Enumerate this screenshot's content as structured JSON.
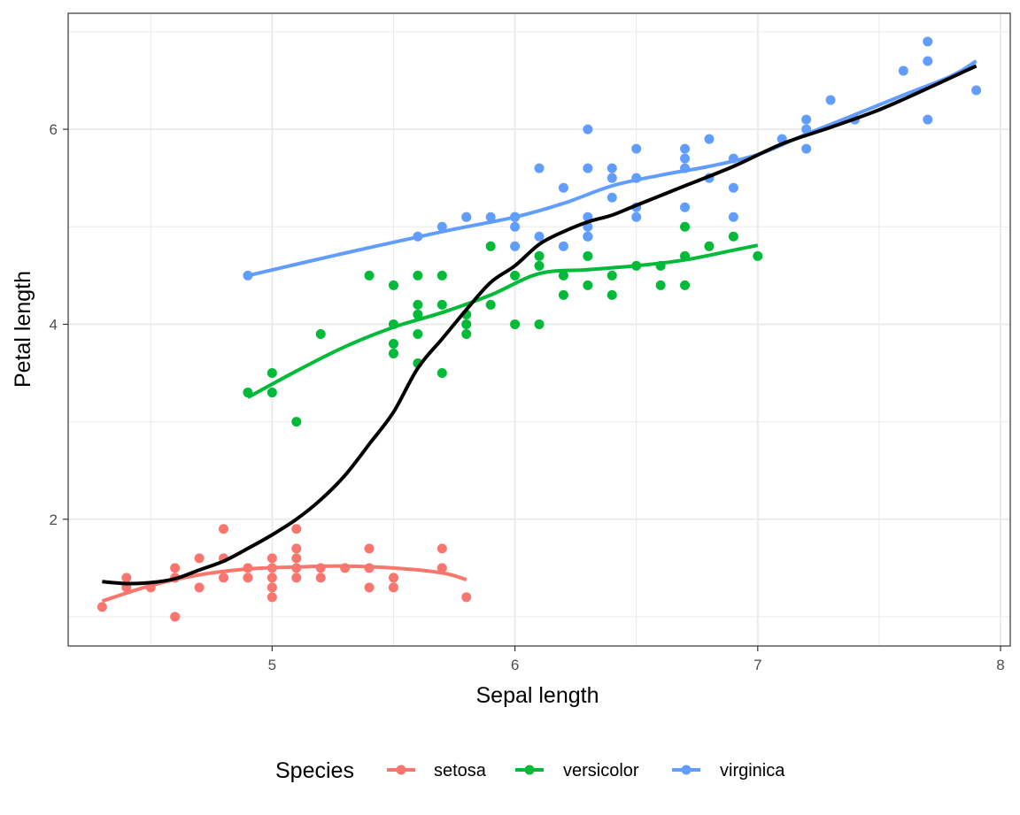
{
  "chart_data": {
    "type": "scatter",
    "xlabel": "Sepal length",
    "ylabel": "Petal length",
    "xlim": [
      4.16,
      8.04
    ],
    "ylim": [
      0.7,
      7.19
    ],
    "x_ticks": [
      5,
      6,
      7,
      8
    ],
    "y_ticks": [
      2,
      4,
      6
    ],
    "x_minor_ticks": [
      4.5,
      5.5,
      6.5,
      7.5
    ],
    "y_minor_ticks": [
      1,
      3,
      5,
      7
    ],
    "x_tick_labels": [
      "5",
      "6",
      "7",
      "8"
    ],
    "y_tick_labels": [
      "2",
      "4",
      "6"
    ],
    "grid": true,
    "legend": {
      "title": "Species",
      "position": "bottom",
      "entries": [
        "setosa",
        "versicolor",
        "virginica"
      ]
    },
    "series": [
      {
        "name": "setosa",
        "color": "#F8766D",
        "points": [
          [
            4.3,
            1.1
          ],
          [
            4.4,
            1.4
          ],
          [
            4.4,
            1.3
          ],
          [
            4.5,
            1.3
          ],
          [
            4.6,
            1.0
          ],
          [
            4.6,
            1.4
          ],
          [
            4.6,
            1.5
          ],
          [
            4.7,
            1.3
          ],
          [
            4.7,
            1.6
          ],
          [
            4.8,
            1.9
          ],
          [
            4.8,
            1.6
          ],
          [
            4.8,
            1.4
          ],
          [
            4.9,
            1.5
          ],
          [
            4.9,
            1.4
          ],
          [
            5.0,
            1.6
          ],
          [
            5.0,
            1.5
          ],
          [
            5.0,
            1.4
          ],
          [
            5.0,
            1.3
          ],
          [
            5.0,
            1.2
          ],
          [
            5.1,
            1.9
          ],
          [
            5.1,
            1.7
          ],
          [
            5.1,
            1.6
          ],
          [
            5.1,
            1.5
          ],
          [
            5.1,
            1.4
          ],
          [
            5.2,
            1.5
          ],
          [
            5.2,
            1.4
          ],
          [
            5.3,
            1.5
          ],
          [
            5.4,
            1.7
          ],
          [
            5.4,
            1.5
          ],
          [
            5.4,
            1.3
          ],
          [
            5.5,
            1.4
          ],
          [
            5.5,
            1.3
          ],
          [
            5.7,
            1.7
          ],
          [
            5.7,
            1.5
          ],
          [
            5.8,
            1.2
          ]
        ],
        "smooth": [
          [
            4.3,
            1.16
          ],
          [
            4.5,
            1.32
          ],
          [
            4.7,
            1.43
          ],
          [
            4.9,
            1.49
          ],
          [
            5.1,
            1.51
          ],
          [
            5.3,
            1.52
          ],
          [
            5.5,
            1.5
          ],
          [
            5.7,
            1.45
          ],
          [
            5.8,
            1.38
          ]
        ]
      },
      {
        "name": "versicolor",
        "color": "#00BA38",
        "points": [
          [
            4.9,
            3.3
          ],
          [
            5.0,
            3.5
          ],
          [
            5.0,
            3.3
          ],
          [
            5.1,
            3.0
          ],
          [
            5.2,
            3.9
          ],
          [
            5.4,
            4.5
          ],
          [
            5.5,
            4.4
          ],
          [
            5.5,
            4.0
          ],
          [
            5.5,
            3.8
          ],
          [
            5.5,
            3.7
          ],
          [
            5.6,
            4.5
          ],
          [
            5.6,
            4.2
          ],
          [
            5.6,
            4.1
          ],
          [
            5.6,
            3.9
          ],
          [
            5.6,
            3.6
          ],
          [
            5.7,
            4.5
          ],
          [
            5.7,
            4.2
          ],
          [
            5.7,
            3.5
          ],
          [
            5.8,
            4.1
          ],
          [
            5.8,
            4.0
          ],
          [
            5.8,
            3.9
          ],
          [
            5.9,
            4.8
          ],
          [
            5.9,
            4.2
          ],
          [
            6.0,
            5.1
          ],
          [
            6.0,
            4.5
          ],
          [
            6.0,
            4.0
          ],
          [
            6.1,
            4.7
          ],
          [
            6.1,
            4.6
          ],
          [
            6.1,
            4.0
          ],
          [
            6.2,
            4.5
          ],
          [
            6.2,
            4.3
          ],
          [
            6.3,
            4.9
          ],
          [
            6.3,
            4.7
          ],
          [
            6.3,
            4.4
          ],
          [
            6.4,
            4.5
          ],
          [
            6.4,
            4.3
          ],
          [
            6.5,
            4.6
          ],
          [
            6.6,
            4.6
          ],
          [
            6.6,
            4.4
          ],
          [
            6.7,
            5.0
          ],
          [
            6.7,
            4.7
          ],
          [
            6.7,
            4.4
          ],
          [
            6.8,
            4.8
          ],
          [
            6.9,
            4.9
          ],
          [
            7.0,
            4.7
          ]
        ],
        "smooth": [
          [
            4.9,
            3.25
          ],
          [
            5.1,
            3.52
          ],
          [
            5.3,
            3.77
          ],
          [
            5.5,
            3.97
          ],
          [
            5.7,
            4.12
          ],
          [
            5.9,
            4.3
          ],
          [
            6.1,
            4.52
          ],
          [
            6.3,
            4.56
          ],
          [
            6.5,
            4.6
          ],
          [
            6.7,
            4.66
          ],
          [
            6.9,
            4.76
          ],
          [
            7.0,
            4.81
          ]
        ]
      },
      {
        "name": "virginica",
        "color": "#619CFF",
        "points": [
          [
            4.9,
            4.5
          ],
          [
            5.6,
            4.9
          ],
          [
            5.7,
            5.0
          ],
          [
            5.8,
            5.1
          ],
          [
            5.8,
            5.1
          ],
          [
            5.9,
            5.1
          ],
          [
            6.0,
            5.1
          ],
          [
            6.0,
            4.8
          ],
          [
            6.0,
            5.0
          ],
          [
            6.1,
            5.6
          ],
          [
            6.1,
            4.9
          ],
          [
            6.2,
            5.4
          ],
          [
            6.2,
            4.8
          ],
          [
            6.3,
            6.0
          ],
          [
            6.3,
            5.6
          ],
          [
            6.3,
            5.1
          ],
          [
            6.3,
            5.0
          ],
          [
            6.3,
            4.9
          ],
          [
            6.4,
            5.6
          ],
          [
            6.4,
            5.5
          ],
          [
            6.4,
            5.3
          ],
          [
            6.5,
            5.8
          ],
          [
            6.5,
            5.5
          ],
          [
            6.5,
            5.2
          ],
          [
            6.5,
            5.1
          ],
          [
            6.7,
            5.8
          ],
          [
            6.7,
            5.7
          ],
          [
            6.7,
            5.6
          ],
          [
            6.7,
            5.2
          ],
          [
            6.8,
            5.9
          ],
          [
            6.8,
            5.5
          ],
          [
            6.9,
            5.7
          ],
          [
            6.9,
            5.4
          ],
          [
            6.9,
            5.1
          ],
          [
            7.1,
            5.9
          ],
          [
            7.2,
            6.1
          ],
          [
            7.2,
            6.0
          ],
          [
            7.2,
            5.8
          ],
          [
            7.3,
            6.3
          ],
          [
            7.4,
            6.1
          ],
          [
            7.6,
            6.6
          ],
          [
            7.7,
            6.9
          ],
          [
            7.7,
            6.7
          ],
          [
            7.7,
            6.1
          ],
          [
            7.9,
            6.4
          ]
        ],
        "smooth": [
          [
            4.9,
            4.5
          ],
          [
            5.3,
            4.73
          ],
          [
            5.7,
            4.95
          ],
          [
            6.0,
            5.1
          ],
          [
            6.2,
            5.24
          ],
          [
            6.4,
            5.42
          ],
          [
            6.6,
            5.53
          ],
          [
            6.8,
            5.62
          ],
          [
            7.0,
            5.74
          ],
          [
            7.2,
            5.95
          ],
          [
            7.4,
            6.15
          ],
          [
            7.6,
            6.35
          ],
          [
            7.8,
            6.55
          ],
          [
            7.9,
            6.7
          ]
        ]
      }
    ],
    "overall_smooth": {
      "name": "",
      "color": "#000000",
      "points": [
        [
          4.3,
          1.36
        ],
        [
          4.4,
          1.34
        ],
        [
          4.5,
          1.35
        ],
        [
          4.6,
          1.39
        ],
        [
          4.7,
          1.48
        ],
        [
          4.8,
          1.57
        ],
        [
          4.9,
          1.7
        ],
        [
          5.0,
          1.84
        ],
        [
          5.1,
          2.0
        ],
        [
          5.2,
          2.2
        ],
        [
          5.3,
          2.45
        ],
        [
          5.4,
          2.77
        ],
        [
          5.5,
          3.1
        ],
        [
          5.6,
          3.55
        ],
        [
          5.7,
          3.85
        ],
        [
          5.8,
          4.15
        ],
        [
          5.9,
          4.43
        ],
        [
          6.0,
          4.6
        ],
        [
          6.1,
          4.82
        ],
        [
          6.2,
          4.95
        ],
        [
          6.3,
          5.05
        ],
        [
          6.4,
          5.12
        ],
        [
          6.5,
          5.22
        ],
        [
          6.7,
          5.42
        ],
        [
          6.9,
          5.62
        ],
        [
          7.1,
          5.85
        ],
        [
          7.3,
          6.02
        ],
        [
          7.5,
          6.2
        ],
        [
          7.7,
          6.42
        ],
        [
          7.9,
          6.65
        ]
      ]
    }
  }
}
